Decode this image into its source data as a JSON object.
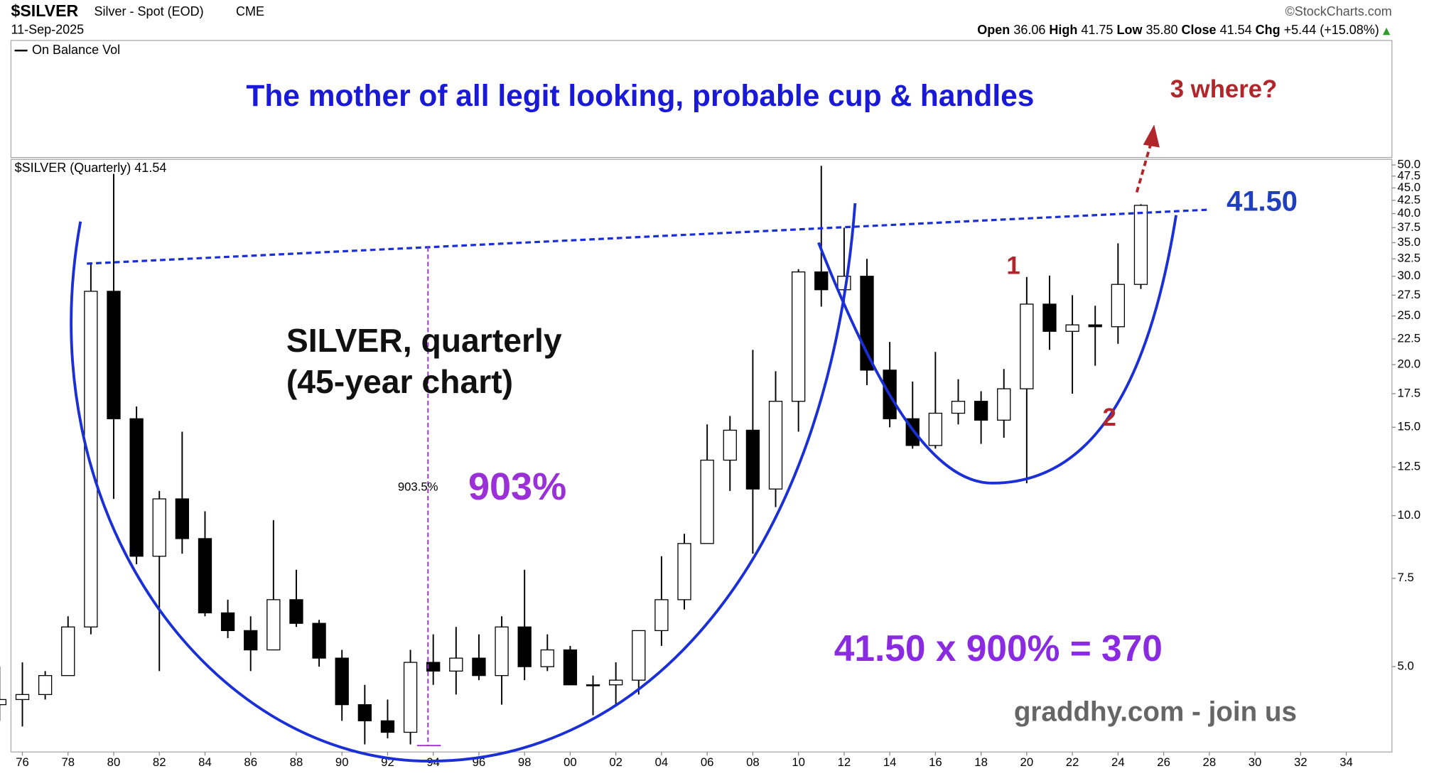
{
  "chart_data": {
    "type": "candlestick",
    "header": {
      "symbol": "$SILVER",
      "name": "Silver - Spot (EOD)",
      "exchange": "CME",
      "date": "11-Sep-2025",
      "source": "©StockCharts.com",
      "open_label": "Open",
      "open": "36.06",
      "high_label": "High",
      "high": "41.75",
      "low_label": "Low",
      "low": "35.80",
      "close_label": "Close",
      "close": "41.54",
      "chg_label": "Chg",
      "chg": "+5.44 (+15.08%)",
      "indicator": "On Balance Vol",
      "price_legend": "$SILVER (Quarterly) 41.54"
    },
    "title": "The mother of all legit looking, probable cup & handles",
    "annotations": {
      "target_question": "3 where?",
      "resistance": "41.50",
      "label_1": "1",
      "label_2": "2",
      "subtitle_1": "SILVER, quarterly",
      "subtitle_2": "(45-year chart)",
      "measure": "903.5%",
      "gain": "903%",
      "formula": "41.50 x 900% = 370",
      "credit": "graddhy.com - join us"
    },
    "x": [
      1975,
      1976,
      1977,
      1978,
      1979,
      1980,
      1981,
      1982,
      1983,
      1984,
      1985,
      1986,
      1987,
      1988,
      1989,
      1990,
      1991,
      1992,
      1993,
      1994,
      1995,
      1996,
      1997,
      1998,
      1999,
      2000,
      2001,
      2002,
      2003,
      2004,
      2005,
      2006,
      2007,
      2008,
      2009,
      2010,
      2011,
      2012,
      2013,
      2014,
      2015,
      2016,
      2017,
      2018,
      2019,
      2020,
      2021,
      2022,
      2023,
      2024,
      2025
    ],
    "open": [
      4.2,
      4.3,
      4.4,
      4.8,
      6.0,
      28,
      15.6,
      8.3,
      10.8,
      9.0,
      6.4,
      5.9,
      5.4,
      6.8,
      6.1,
      5.2,
      4.2,
      3.9,
      3.7,
      5.1,
      4.9,
      5.2,
      4.8,
      6.0,
      5.0,
      5.4,
      4.6,
      4.6,
      4.7,
      5.9,
      6.8,
      8.8,
      12.9,
      14.8,
      11.3,
      16.9,
      30.6,
      28.2,
      30.0,
      19.5,
      15.6,
      13.8,
      16.0,
      16.9,
      15.5,
      17.9,
      26.4,
      23.3,
      24.0,
      23.8,
      28.9
    ],
    "high": [
      5.0,
      5.1,
      4.9,
      6.3,
      32,
      48,
      16.5,
      11.2,
      14.7,
      10.2,
      6.8,
      6.3,
      9.8,
      7.8,
      6.2,
      5.4,
      4.6,
      4.3,
      5.4,
      5.8,
      6.0,
      5.8,
      6.3,
      7.8,
      5.8,
      5.5,
      4.8,
      5.1,
      5.9,
      8.3,
      9.2,
      15.2,
      15.8,
      21.4,
      19.4,
      31.0,
      49.8,
      37.5,
      32.5,
      22.2,
      18.5,
      21.2,
      18.7,
      17.7,
      19.6,
      29.9,
      30.1,
      27.5,
      26.2,
      34.9,
      41.75
    ],
    "low": [
      3.9,
      3.8,
      4.3,
      4.8,
      5.8,
      10.8,
      8.0,
      4.9,
      8.4,
      6.3,
      5.7,
      4.9,
      5.4,
      6.0,
      5.0,
      3.9,
      3.5,
      3.6,
      3.5,
      4.6,
      4.4,
      4.7,
      4.2,
      4.7,
      4.9,
      4.6,
      4.0,
      4.2,
      4.4,
      5.5,
      6.5,
      8.8,
      11.2,
      8.4,
      10.4,
      14.7,
      26.1,
      26.1,
      18.2,
      15.0,
      13.6,
      13.6,
      15.2,
      13.9,
      14.3,
      11.6,
      21.4,
      17.5,
      19.9,
      22.0,
      28.3
    ],
    "close": [
      4.3,
      4.4,
      4.8,
      6.0,
      28,
      15.6,
      8.3,
      10.8,
      9.0,
      6.4,
      5.9,
      5.4,
      6.8,
      6.1,
      5.2,
      4.2,
      3.9,
      3.7,
      5.1,
      4.9,
      5.2,
      4.8,
      6.0,
      5.0,
      5.4,
      4.6,
      4.6,
      4.7,
      5.9,
      6.8,
      8.8,
      12.9,
      14.8,
      11.3,
      16.9,
      30.6,
      28.2,
      30.0,
      19.5,
      15.6,
      13.8,
      16.0,
      16.9,
      15.5,
      17.9,
      26.4,
      23.3,
      24.0,
      23.8,
      28.9,
      41.54
    ],
    "log_scale": true,
    "xlim": [
      1975.5,
      2036
    ],
    "xticks": [
      {
        "value": 1976,
        "label": "76"
      },
      {
        "value": 1978,
        "label": "78"
      },
      {
        "value": 1980,
        "label": "80"
      },
      {
        "value": 1982,
        "label": "82"
      },
      {
        "value": 1984,
        "label": "84"
      },
      {
        "value": 1986,
        "label": "86"
      },
      {
        "value": 1988,
        "label": "88"
      },
      {
        "value": 1990,
        "label": "90"
      },
      {
        "value": 1992,
        "label": "92"
      },
      {
        "value": 1994,
        "label": "94"
      },
      {
        "value": 1996,
        "label": "96"
      },
      {
        "value": 1998,
        "label": "98"
      },
      {
        "value": 2000,
        "label": "00"
      },
      {
        "value": 2002,
        "label": "02"
      },
      {
        "value": 2004,
        "label": "04"
      },
      {
        "value": 2006,
        "label": "06"
      },
      {
        "value": 2008,
        "label": "08"
      },
      {
        "value": 2010,
        "label": "10"
      },
      {
        "value": 2012,
        "label": "12"
      },
      {
        "value": 2014,
        "label": "14"
      },
      {
        "value": 2016,
        "label": "16"
      },
      {
        "value": 2018,
        "label": "18"
      },
      {
        "value": 2020,
        "label": "20"
      },
      {
        "value": 2022,
        "label": "22"
      },
      {
        "value": 2024,
        "label": "24"
      },
      {
        "value": 2026,
        "label": "26"
      },
      {
        "value": 2028,
        "label": "28"
      },
      {
        "value": 2030,
        "label": "30"
      },
      {
        "value": 2032,
        "label": "32"
      },
      {
        "value": 2034,
        "label": "34"
      }
    ],
    "ylim": [
      3.38,
      51.3
    ],
    "yticks": [
      {
        "value": 5,
        "label": "5.0"
      },
      7.5,
      {
        "value": 10,
        "label": "10.0"
      },
      12.5,
      {
        "value": 15,
        "label": "15.0"
      },
      17.5,
      {
        "value": 20,
        "label": "20.0"
      },
      22.5,
      {
        "value": 25,
        "label": "25.0"
      },
      27.5,
      {
        "value": 30,
        "label": "30.0"
      },
      32.5,
      {
        "value": 35,
        "label": "35.0"
      },
      37.5,
      {
        "value": 40,
        "label": "40.0"
      },
      42.5,
      {
        "value": 45,
        "label": "45.0"
      },
      47.5,
      {
        "value": 50,
        "label": "50.0"
      }
    ],
    "up_color": "#ffffff",
    "down_color": "#000000"
  }
}
